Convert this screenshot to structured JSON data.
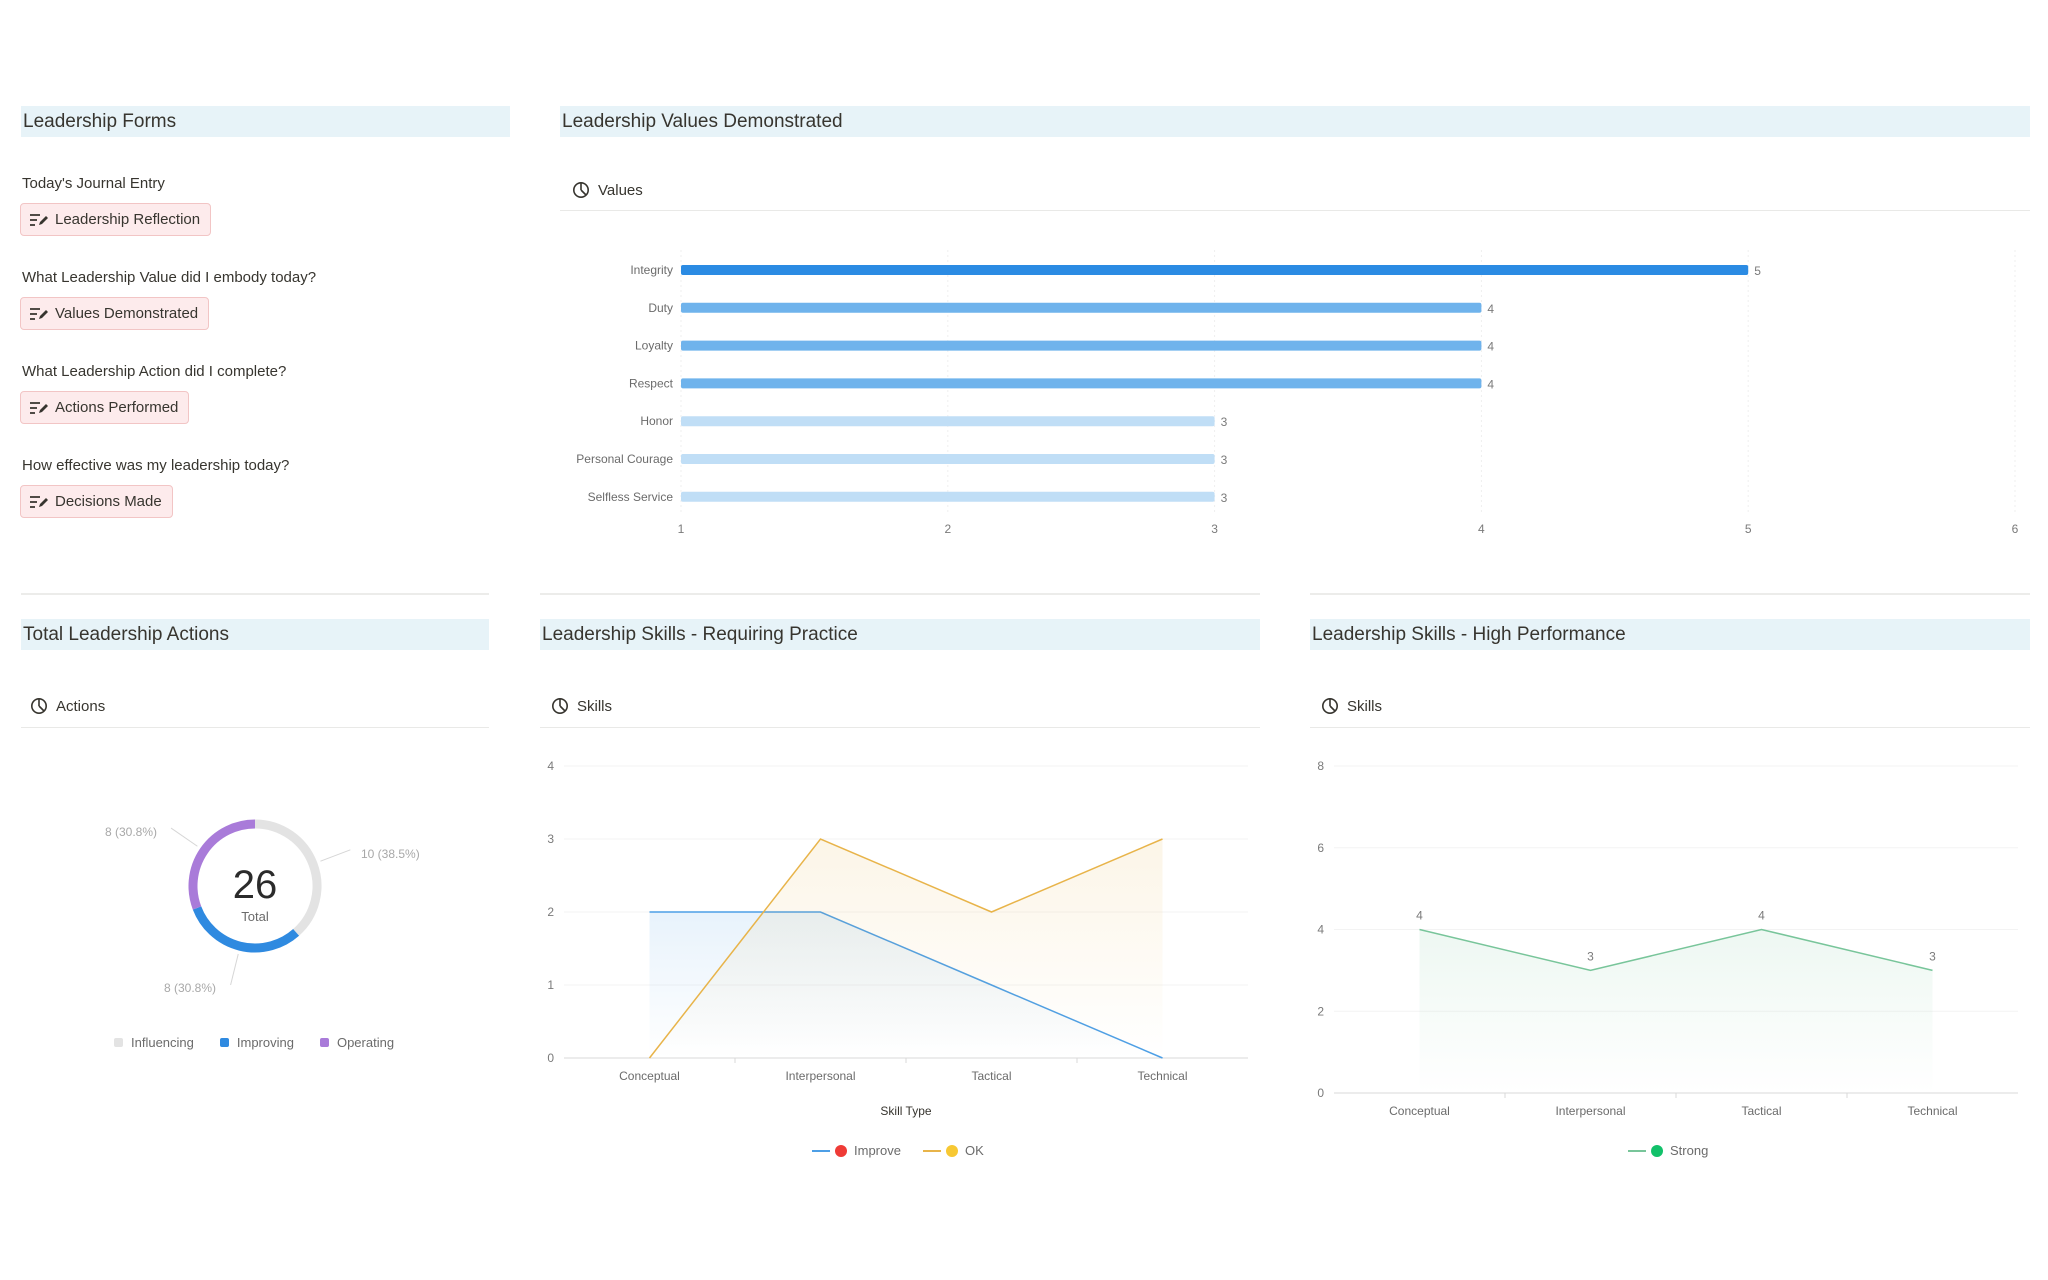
{
  "forms": {
    "title": "Leadership Forms",
    "entries": [
      {
        "question": "Today's Journal Entry",
        "button": "Leadership Reflection"
      },
      {
        "question": "What Leadership Value did I embody today?",
        "button": "Values Demonstrated"
      },
      {
        "question": "What Leadership Action did I complete?",
        "button": "Actions Performed"
      },
      {
        "question": "How effective was my leadership today?",
        "button": "Decisions Made"
      }
    ]
  },
  "values_section": {
    "title": "Leadership Values Demonstrated",
    "view_label": "Values"
  },
  "actions_section": {
    "title": "Total Leadership Actions",
    "view_label": "Actions",
    "total_value": "26",
    "total_label": "Total",
    "slice_labels": [
      "10 (38.5%)",
      "8 (30.8%)",
      "8 (30.8%)"
    ]
  },
  "practice_section": {
    "title": "Leadership Skills - Requiring Practice",
    "view_label": "Skills"
  },
  "performance_section": {
    "title": "Leadership Skills - High Performance",
    "view_label": "Skills"
  },
  "chart_data": [
    {
      "type": "bar",
      "orientation": "horizontal",
      "categories": [
        "Integrity",
        "Duty",
        "Loyalty",
        "Respect",
        "Honor",
        "Personal Courage",
        "Selfless Service"
      ],
      "values": [
        5,
        4,
        4,
        4,
        3,
        3,
        3
      ],
      "xlim": [
        1,
        6
      ],
      "xticks": [
        "1",
        "2",
        "3",
        "4",
        "5",
        "6"
      ],
      "colors": [
        "#2b8be3",
        "#6fb3ec",
        "#6fb3ec",
        "#6fb3ec",
        "#c0def6",
        "#c0def6",
        "#c0def6"
      ],
      "grid": true
    },
    {
      "type": "pie",
      "donut": true,
      "categories": [
        "Influencing",
        "Improving",
        "Operating"
      ],
      "values": [
        10,
        8,
        8
      ],
      "colors": [
        "#e3e3e3",
        "#2f8ae0",
        "#a97bd9"
      ],
      "legend": "bottom"
    },
    {
      "type": "area",
      "categories": [
        "Conceptual",
        "Interpersonal",
        "Tactical",
        "Technical"
      ],
      "xlabel": "Skill Type",
      "ylim": [
        0,
        4
      ],
      "yticks": [
        "0",
        "1",
        "2",
        "3",
        "4"
      ],
      "series": [
        {
          "name": "Improve",
          "values": [
            2,
            2,
            1,
            0
          ],
          "line_color": "#4d9fe6",
          "dot_color": "#ef3b36"
        },
        {
          "name": "OK",
          "values": [
            0,
            3,
            2,
            3
          ],
          "line_color": "#e8b44a",
          "dot_color": "#f7c833"
        }
      ],
      "legend": "bottom"
    },
    {
      "type": "area",
      "categories": [
        "Conceptual",
        "Interpersonal",
        "Tactical",
        "Technical"
      ],
      "ylim": [
        0,
        8
      ],
      "yticks": [
        "0",
        "2",
        "4",
        "6",
        "8"
      ],
      "series": [
        {
          "name": "Strong",
          "values": [
            4,
            3,
            4,
            3
          ],
          "line_color": "#78c59a",
          "dot_color": "#12c16a",
          "data_labels": [
            "4",
            "3",
            "4",
            "3"
          ]
        }
      ],
      "legend": "bottom"
    }
  ]
}
